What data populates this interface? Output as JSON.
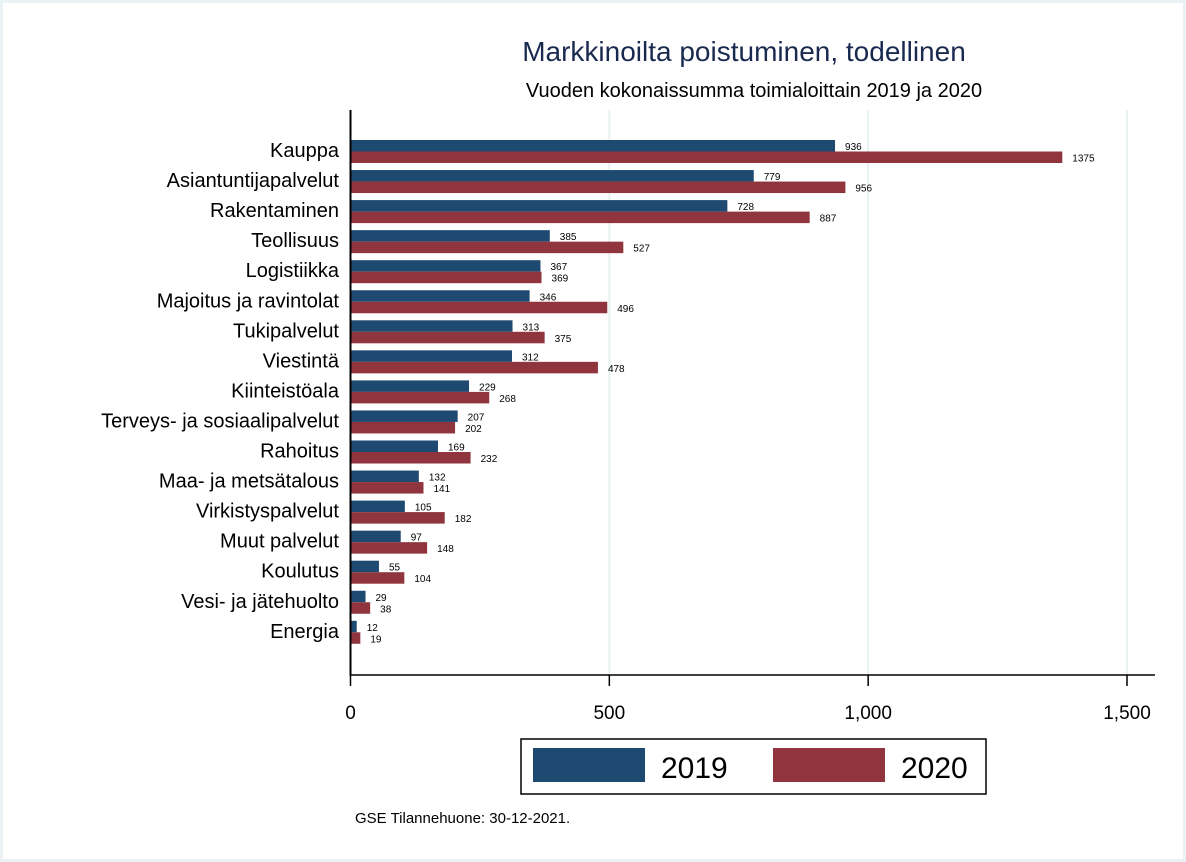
{
  "chart_data": {
    "type": "bar",
    "orientation": "horizontal",
    "title": "Markkinoilta poistuminen, todellinen",
    "subtitle": "Vuoden kokonaissumma toimialoittain 2019 ja 2020",
    "xlabel": "",
    "ylabel": "",
    "xlim": [
      0,
      1550
    ],
    "xticks": [
      0,
      500,
      1000,
      1500
    ],
    "xtick_labels": [
      "0",
      "500",
      "1,000",
      "1,500"
    ],
    "grid": true,
    "legend_position": "bottom-center",
    "categories": [
      "Kauppa",
      "Asiantuntijapalvelut",
      "Rakentaminen",
      "Teollisuus",
      "Logistiikka",
      "Majoitus ja ravintolat",
      "Tukipalvelut",
      "Viestintä",
      "Kiinteistöala",
      "Terveys- ja sosiaalipalvelut",
      "Rahoitus",
      "Maa- ja metsätalous",
      "Virkistyspalvelut",
      "Muut palvelut",
      "Koulutus",
      "Vesi- ja jätehuolto",
      "Energia"
    ],
    "series": [
      {
        "name": "2019",
        "color": "#1e4a72",
        "values": [
          936,
          779,
          728,
          385,
          367,
          346,
          313,
          312,
          229,
          207,
          169,
          132,
          105,
          97,
          55,
          29,
          12
        ]
      },
      {
        "name": "2020",
        "color": "#90353e",
        "values": [
          1375,
          956,
          887,
          527,
          369,
          496,
          375,
          478,
          268,
          202,
          232,
          141,
          182,
          148,
          104,
          38,
          19
        ]
      }
    ],
    "note": "GSE Tilannehuone: 30-12-2021."
  }
}
